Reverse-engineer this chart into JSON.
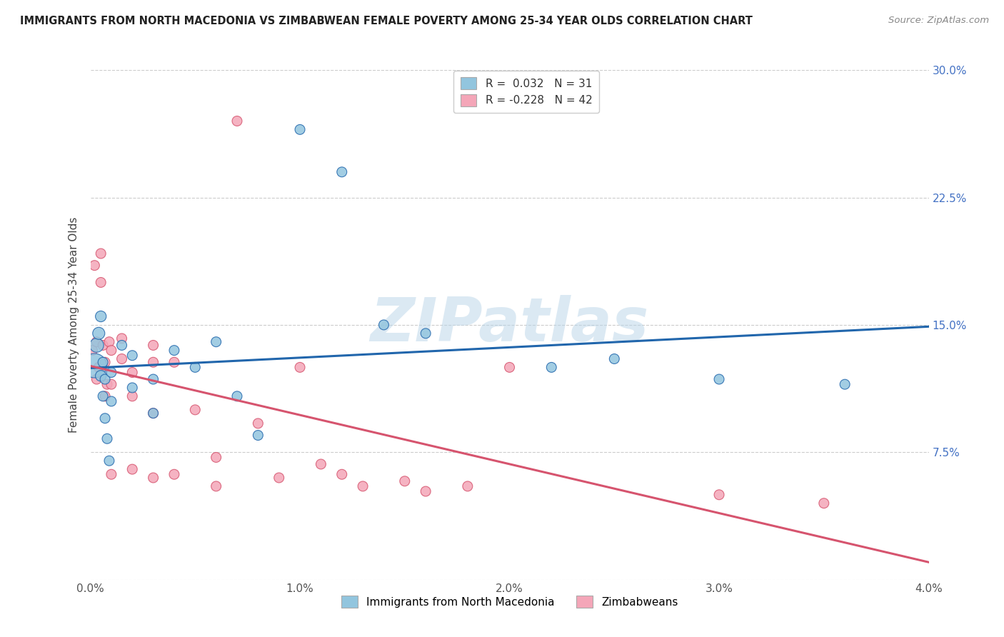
{
  "title": "IMMIGRANTS FROM NORTH MACEDONIA VS ZIMBABWEAN FEMALE POVERTY AMONG 25-34 YEAR OLDS CORRELATION CHART",
  "source": "Source: ZipAtlas.com",
  "xlabel_blue": "Immigrants from North Macedonia",
  "xlabel_pink": "Zimbabweans",
  "ylabel": "Female Poverty Among 25-34 Year Olds",
  "R_blue": 0.032,
  "N_blue": 31,
  "R_pink": -0.228,
  "N_pink": 42,
  "xlim": [
    0.0,
    0.04
  ],
  "ylim": [
    0.0,
    0.3
  ],
  "xticks": [
    0.0,
    0.01,
    0.02,
    0.03,
    0.04
  ],
  "yticks": [
    0.0,
    0.075,
    0.15,
    0.225,
    0.3
  ],
  "xtick_labels": [
    "0.0%",
    "1.0%",
    "2.0%",
    "3.0%",
    "4.0%"
  ],
  "ytick_right_labels": [
    "",
    "7.5%",
    "15.0%",
    "22.5%",
    "30.0%"
  ],
  "color_blue": "#92c5de",
  "color_pink": "#f4a6b8",
  "color_blue_line": "#2166ac",
  "color_pink_line": "#d6546e",
  "background_color": "#ffffff",
  "watermark_text": "ZIPatlas",
  "blue_x": [
    0.0002,
    0.0003,
    0.0004,
    0.0005,
    0.0005,
    0.0006,
    0.0006,
    0.0007,
    0.0007,
    0.0008,
    0.0009,
    0.001,
    0.001,
    0.0015,
    0.002,
    0.002,
    0.003,
    0.003,
    0.004,
    0.005,
    0.006,
    0.007,
    0.008,
    0.01,
    0.012,
    0.014,
    0.016,
    0.022,
    0.025,
    0.03,
    0.036
  ],
  "blue_y": [
    0.126,
    0.138,
    0.145,
    0.12,
    0.155,
    0.128,
    0.108,
    0.118,
    0.095,
    0.083,
    0.07,
    0.122,
    0.105,
    0.138,
    0.132,
    0.113,
    0.118,
    0.098,
    0.135,
    0.125,
    0.14,
    0.108,
    0.085,
    0.265,
    0.24,
    0.15,
    0.145,
    0.125,
    0.13,
    0.118,
    0.115
  ],
  "blue_sizes": [
    600,
    200,
    150,
    120,
    120,
    100,
    100,
    100,
    100,
    100,
    100,
    100,
    100,
    100,
    100,
    100,
    100,
    100,
    100,
    100,
    100,
    100,
    100,
    100,
    100,
    100,
    100,
    100,
    100,
    100,
    100
  ],
  "pink_x": [
    0.0001,
    0.0002,
    0.0003,
    0.0003,
    0.0004,
    0.0005,
    0.0005,
    0.0006,
    0.0007,
    0.0007,
    0.0008,
    0.0009,
    0.001,
    0.001,
    0.001,
    0.0015,
    0.0015,
    0.002,
    0.002,
    0.002,
    0.003,
    0.003,
    0.003,
    0.003,
    0.004,
    0.004,
    0.005,
    0.006,
    0.006,
    0.007,
    0.008,
    0.009,
    0.01,
    0.011,
    0.012,
    0.013,
    0.015,
    0.016,
    0.018,
    0.02,
    0.03,
    0.035
  ],
  "pink_y": [
    0.135,
    0.185,
    0.14,
    0.118,
    0.125,
    0.192,
    0.175,
    0.138,
    0.128,
    0.108,
    0.115,
    0.14,
    0.135,
    0.115,
    0.062,
    0.142,
    0.13,
    0.122,
    0.108,
    0.065,
    0.138,
    0.128,
    0.098,
    0.06,
    0.128,
    0.062,
    0.1,
    0.072,
    0.055,
    0.27,
    0.092,
    0.06,
    0.125,
    0.068,
    0.062,
    0.055,
    0.058,
    0.052,
    0.055,
    0.125,
    0.05,
    0.045
  ],
  "pink_sizes": [
    100,
    100,
    100,
    100,
    100,
    100,
    100,
    100,
    100,
    100,
    100,
    100,
    100,
    100,
    100,
    100,
    100,
    100,
    100,
    100,
    100,
    100,
    100,
    100,
    100,
    100,
    100,
    100,
    100,
    100,
    100,
    100,
    100,
    100,
    100,
    100,
    100,
    100,
    100,
    100,
    100,
    100
  ]
}
